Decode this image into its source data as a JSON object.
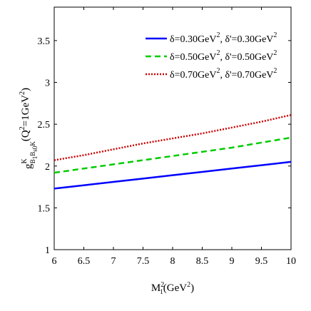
{
  "chart_data": {
    "type": "line",
    "x": [
      6,
      6.5,
      7,
      7.5,
      8,
      8.5,
      9,
      9.5,
      10
    ],
    "xlim": [
      6,
      10
    ],
    "ylim": [
      1,
      3.9
    ],
    "x_ticks": [
      "6",
      "6.5",
      "7",
      "7.5",
      "8",
      "8.5",
      "9",
      "9.5",
      "10"
    ],
    "y_ticks": [
      "1",
      "1.5",
      "2",
      "2.5",
      "3",
      "3.5"
    ],
    "xlabel": {
      "base": "M",
      "sub": "1",
      "sup": "2",
      "unit_open": "(GeV",
      "unit_sup": "2",
      "unit_close": ")"
    },
    "ylabel": {
      "g": "g",
      "sup": "K",
      "sub_b1": "B",
      "sub_1": "1",
      "sub_b": "B",
      "sub_s0": "s0",
      "sub_k": "K",
      "q": "(Q",
      "q_sup": "2",
      "eq": "=1GeV",
      "eq_sup": "2",
      "close": ")"
    },
    "legend_position": "top-right",
    "grid": false,
    "series": [
      {
        "label_parts": {
          "a": "δ=0.30GeV",
          "a_sup": "2",
          "b": ", δ'=0.30GeV",
          "b_sup": "2"
        },
        "color": "#0000ff",
        "dash": "solid",
        "values": [
          1.73,
          1.77,
          1.81,
          1.85,
          1.89,
          1.93,
          1.97,
          2.01,
          2.05
        ]
      },
      {
        "label_parts": {
          "a": "δ=0.50GeV",
          "a_sup": "2",
          "b": ", δ'=0.50GeV",
          "b_sup": "2"
        },
        "color": "#00cc00",
        "dash": "dashed",
        "values": [
          1.92,
          1.97,
          2.02,
          2.07,
          2.12,
          2.17,
          2.22,
          2.28,
          2.34
        ]
      },
      {
        "label_parts": {
          "a": "δ=0.70GeV",
          "a_sup": "2",
          "b": ", δ'=0.70GeV",
          "b_sup": "2"
        },
        "color": "#cc0000",
        "dash": "dotted",
        "values": [
          2.07,
          2.13,
          2.2,
          2.27,
          2.33,
          2.39,
          2.46,
          2.53,
          2.61
        ]
      }
    ]
  }
}
